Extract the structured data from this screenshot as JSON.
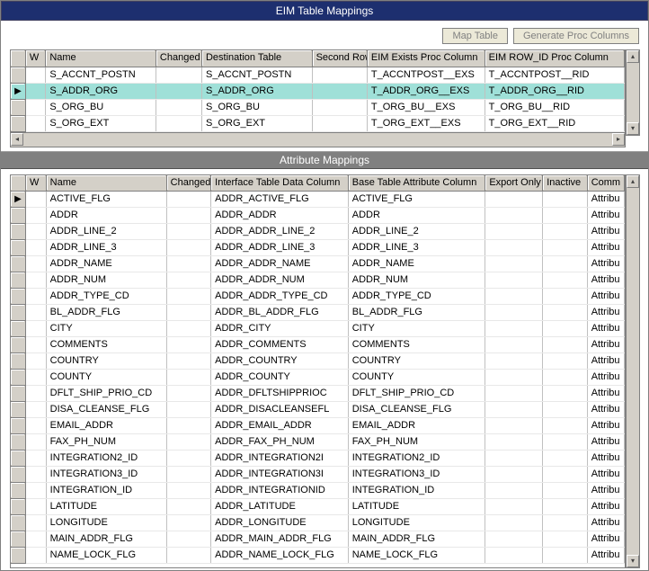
{
  "titles": {
    "top": "EIM Table Mappings",
    "mid": "Attribute Mappings"
  },
  "buttons": {
    "map": "Map Table",
    "gen": "Generate Proc Columns"
  },
  "grid1": {
    "headers": {
      "w": "W",
      "name": "Name",
      "changed": "Changed",
      "dest": "Destination Table",
      "second": "Second Row",
      "exists": "EIM Exists Proc Column",
      "rowid": "EIM ROW_ID Proc Column"
    },
    "rows": [
      {
        "sel": false,
        "name": "S_ACCNT_POSTN",
        "dest": "S_ACCNT_POSTN",
        "exists": "T_ACCNTPOST__EXS",
        "rowid": "T_ACCNTPOST__RID"
      },
      {
        "sel": true,
        "name": "S_ADDR_ORG",
        "dest": "S_ADDR_ORG",
        "exists": "T_ADDR_ORG__EXS",
        "rowid": "T_ADDR_ORG__RID"
      },
      {
        "sel": false,
        "name": "S_ORG_BU",
        "dest": "S_ORG_BU",
        "exists": "T_ORG_BU__EXS",
        "rowid": "T_ORG_BU__RID"
      },
      {
        "sel": false,
        "name": "S_ORG_EXT",
        "dest": "S_ORG_EXT",
        "exists": "T_ORG_EXT__EXS",
        "rowid": "T_ORG_EXT__RID"
      }
    ]
  },
  "grid2": {
    "headers": {
      "w": "W",
      "name": "Name",
      "changed": "Changed",
      "itdc": "Interface Table Data Column",
      "btac": "Base Table Attribute Column",
      "export": "Export Only",
      "inactive": "Inactive",
      "comm": "Comm"
    },
    "rows": [
      {
        "sel": true,
        "name": "ACTIVE_FLG",
        "itdc": "ADDR_ACTIVE_FLG",
        "btac": "ACTIVE_FLG",
        "comm": "Attribu"
      },
      {
        "sel": false,
        "name": "ADDR",
        "itdc": "ADDR_ADDR",
        "btac": "ADDR",
        "comm": "Attribu"
      },
      {
        "sel": false,
        "name": "ADDR_LINE_2",
        "itdc": "ADDR_ADDR_LINE_2",
        "btac": "ADDR_LINE_2",
        "comm": "Attribu"
      },
      {
        "sel": false,
        "name": "ADDR_LINE_3",
        "itdc": "ADDR_ADDR_LINE_3",
        "btac": "ADDR_LINE_3",
        "comm": "Attribu"
      },
      {
        "sel": false,
        "name": "ADDR_NAME",
        "itdc": "ADDR_ADDR_NAME",
        "btac": "ADDR_NAME",
        "comm": "Attribu"
      },
      {
        "sel": false,
        "name": "ADDR_NUM",
        "itdc": "ADDR_ADDR_NUM",
        "btac": "ADDR_NUM",
        "comm": "Attribu"
      },
      {
        "sel": false,
        "name": "ADDR_TYPE_CD",
        "itdc": "ADDR_ADDR_TYPE_CD",
        "btac": "ADDR_TYPE_CD",
        "comm": "Attribu"
      },
      {
        "sel": false,
        "name": "BL_ADDR_FLG",
        "itdc": "ADDR_BL_ADDR_FLG",
        "btac": "BL_ADDR_FLG",
        "comm": "Attribu"
      },
      {
        "sel": false,
        "name": "CITY",
        "itdc": "ADDR_CITY",
        "btac": "CITY",
        "comm": "Attribu"
      },
      {
        "sel": false,
        "name": "COMMENTS",
        "itdc": "ADDR_COMMENTS",
        "btac": "COMMENTS",
        "comm": "Attribu"
      },
      {
        "sel": false,
        "name": "COUNTRY",
        "itdc": "ADDR_COUNTRY",
        "btac": "COUNTRY",
        "comm": "Attribu"
      },
      {
        "sel": false,
        "name": "COUNTY",
        "itdc": "ADDR_COUNTY",
        "btac": "COUNTY",
        "comm": "Attribu"
      },
      {
        "sel": false,
        "name": "DFLT_SHIP_PRIO_CD",
        "itdc": "ADDR_DFLTSHIPPRIOC",
        "btac": "DFLT_SHIP_PRIO_CD",
        "comm": "Attribu"
      },
      {
        "sel": false,
        "name": "DISA_CLEANSE_FLG",
        "itdc": "ADDR_DISACLEANSEFL",
        "btac": "DISA_CLEANSE_FLG",
        "comm": "Attribu"
      },
      {
        "sel": false,
        "name": "EMAIL_ADDR",
        "itdc": "ADDR_EMAIL_ADDR",
        "btac": "EMAIL_ADDR",
        "comm": "Attribu"
      },
      {
        "sel": false,
        "name": "FAX_PH_NUM",
        "itdc": "ADDR_FAX_PH_NUM",
        "btac": "FAX_PH_NUM",
        "comm": "Attribu"
      },
      {
        "sel": false,
        "name": "INTEGRATION2_ID",
        "itdc": "ADDR_INTEGRATION2I",
        "btac": "INTEGRATION2_ID",
        "comm": "Attribu"
      },
      {
        "sel": false,
        "name": "INTEGRATION3_ID",
        "itdc": "ADDR_INTEGRATION3I",
        "btac": "INTEGRATION3_ID",
        "comm": "Attribu"
      },
      {
        "sel": false,
        "name": "INTEGRATION_ID",
        "itdc": "ADDR_INTEGRATIONID",
        "btac": "INTEGRATION_ID",
        "comm": "Attribu"
      },
      {
        "sel": false,
        "name": "LATITUDE",
        "itdc": "ADDR_LATITUDE",
        "btac": "LATITUDE",
        "comm": "Attribu"
      },
      {
        "sel": false,
        "name": "LONGITUDE",
        "itdc": "ADDR_LONGITUDE",
        "btac": "LONGITUDE",
        "comm": "Attribu"
      },
      {
        "sel": false,
        "name": "MAIN_ADDR_FLG",
        "itdc": "ADDR_MAIN_ADDR_FLG",
        "btac": "MAIN_ADDR_FLG",
        "comm": "Attribu"
      },
      {
        "sel": false,
        "name": "NAME_LOCK_FLG",
        "itdc": "ADDR_NAME_LOCK_FLG",
        "btac": "NAME_LOCK_FLG",
        "comm": "Attribu"
      }
    ]
  },
  "grid1_widths": {
    "name": 120,
    "changed": 50,
    "dest": 120,
    "second": 60,
    "exists": 128,
    "rowid": 152
  },
  "grid2_widths": {
    "name": 130,
    "changed": 48,
    "itdc": 148,
    "btac": 148,
    "export": 62,
    "inactive": 48,
    "comm": 40
  }
}
